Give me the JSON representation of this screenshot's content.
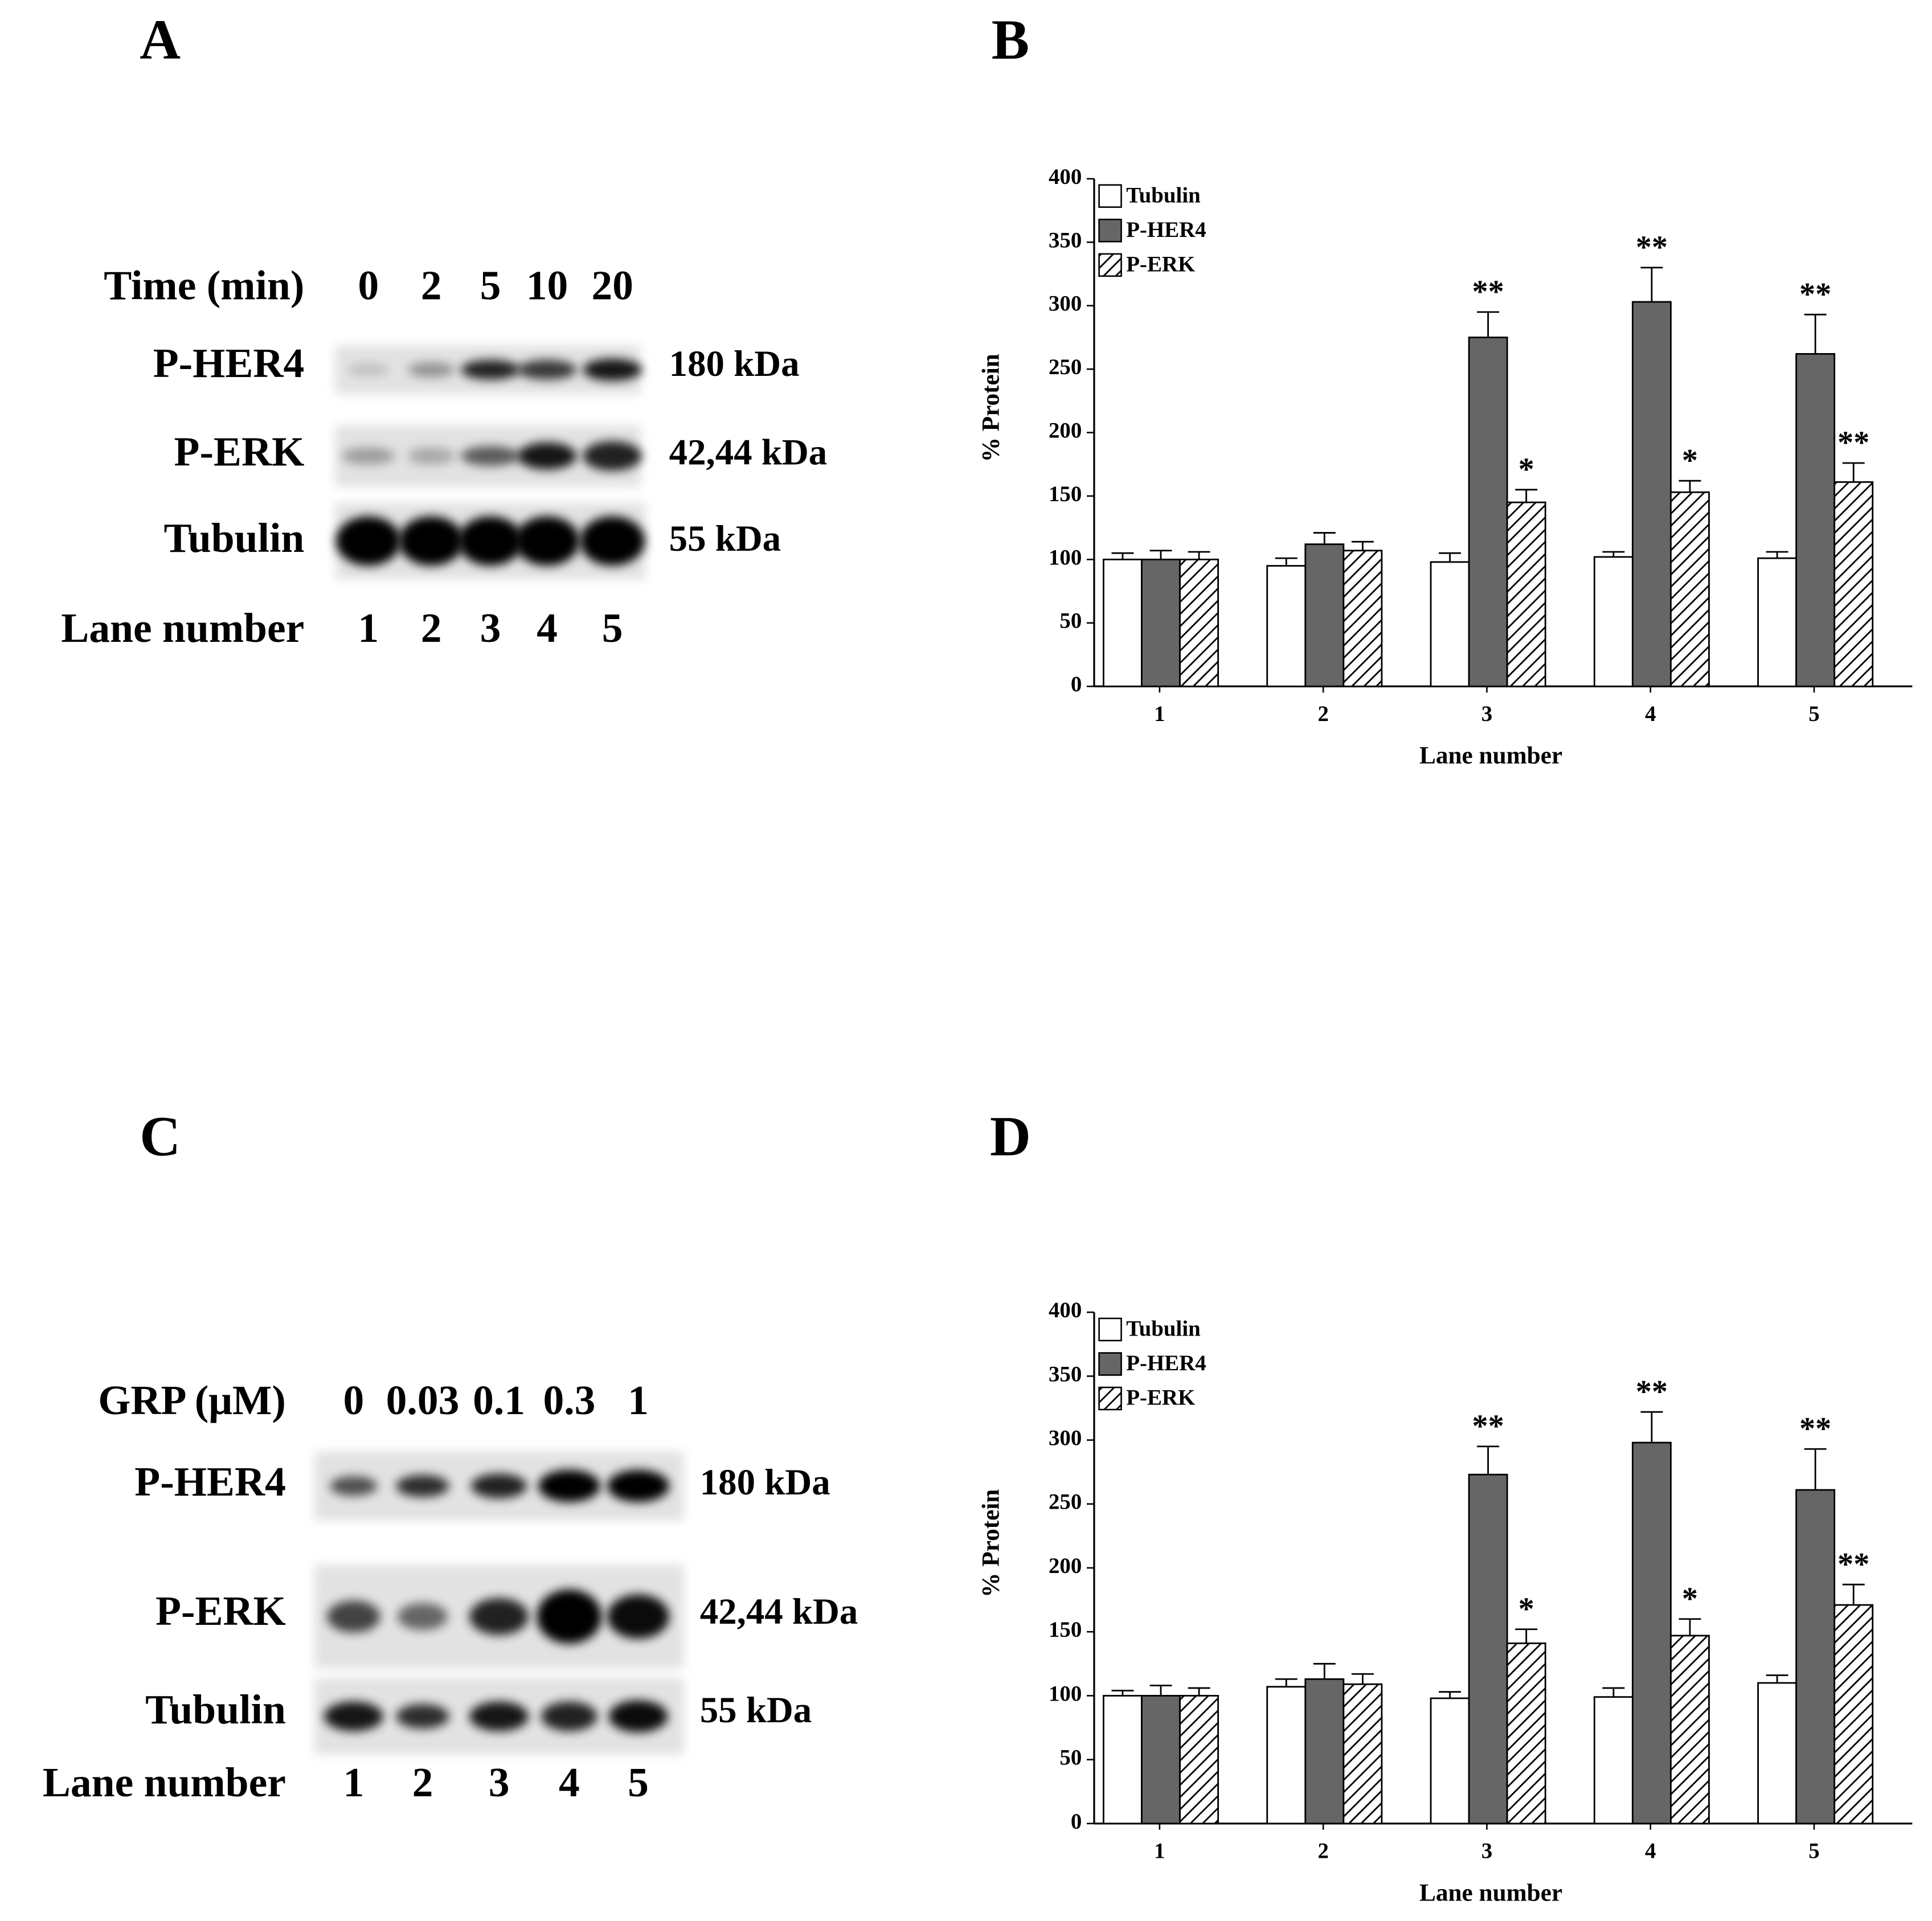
{
  "panels": [
    "A",
    "B",
    "C",
    "D"
  ],
  "blots": [
    {
      "header_label": "Time (min)",
      "header": [
        "0",
        "2",
        "5",
        "10",
        "20"
      ],
      "rows": [
        {
          "name": "P-HER4",
          "size": "180 kDa"
        },
        {
          "name": "P-ERK",
          "size": "42,44 kDa"
        },
        {
          "name": "Tubulin",
          "size": "55 kDa"
        }
      ],
      "lane_label": "Lane number",
      "lanes": [
        "1",
        "2",
        "3",
        "4",
        "5"
      ]
    },
    {
      "header_label": "GRP (μM)",
      "header": [
        "0",
        "0.03",
        "0.1",
        "0.3",
        "1"
      ],
      "rows": [
        {
          "name": "P-HER4",
          "size": "180 kDa"
        },
        {
          "name": "P-ERK",
          "size": "42,44 kDa"
        },
        {
          "name": "Tubulin",
          "size": "55 kDa"
        }
      ],
      "lane_label": "Lane number",
      "lanes": [
        "1",
        "2",
        "3",
        "4",
        "5"
      ]
    }
  ],
  "chart_data": [
    {
      "type": "bar",
      "xlabel": "Lane number",
      "ylabel": "% Protein",
      "categories": [
        "1",
        "2",
        "3",
        "4",
        "5"
      ],
      "ylim": [
        0,
        400
      ],
      "yticks": [
        0,
        50,
        100,
        150,
        200,
        250,
        300,
        350,
        400
      ],
      "legend": "upper left",
      "series": [
        {
          "name": "Tubulin",
          "color": "#ffffff",
          "values": [
            100,
            95,
            98,
            102,
            101
          ],
          "errors": [
            5,
            6,
            7,
            4,
            5
          ],
          "annotations": [
            null,
            null,
            null,
            null,
            null
          ]
        },
        {
          "name": "P-HER4",
          "color": "#666666",
          "values": [
            100,
            112,
            275,
            303,
            262
          ],
          "errors": [
            7,
            9,
            20,
            27,
            31
          ],
          "annotations": [
            null,
            null,
            "**",
            "**",
            "**"
          ]
        },
        {
          "name": "P-ERK",
          "color": "hatch",
          "values": [
            100,
            107,
            145,
            153,
            161
          ],
          "errors": [
            6,
            7,
            10,
            9,
            15
          ],
          "annotations": [
            null,
            null,
            "*",
            "*",
            "**"
          ]
        }
      ]
    },
    {
      "type": "bar",
      "xlabel": "Lane number",
      "ylabel": "% Protein",
      "categories": [
        "1",
        "2",
        "3",
        "4",
        "5"
      ],
      "ylim": [
        0,
        400
      ],
      "yticks": [
        0,
        50,
        100,
        150,
        200,
        250,
        300,
        350,
        400
      ],
      "legend": "upper left",
      "series": [
        {
          "name": "Tubulin",
          "color": "#ffffff",
          "values": [
            100,
            107,
            98,
            99,
            110
          ],
          "errors": [
            4,
            6,
            5,
            7,
            6
          ],
          "annotations": [
            null,
            null,
            null,
            null,
            null
          ]
        },
        {
          "name": "P-HER4",
          "color": "#666666",
          "values": [
            100,
            113,
            273,
            298,
            261
          ],
          "errors": [
            8,
            12,
            22,
            24,
            32
          ],
          "annotations": [
            null,
            null,
            "**",
            "**",
            "**"
          ]
        },
        {
          "name": "P-ERK",
          "color": "hatch",
          "values": [
            100,
            109,
            141,
            147,
            171
          ],
          "errors": [
            6,
            8,
            11,
            13,
            16
          ],
          "annotations": [
            null,
            null,
            "*",
            "*",
            "**"
          ]
        }
      ]
    }
  ]
}
